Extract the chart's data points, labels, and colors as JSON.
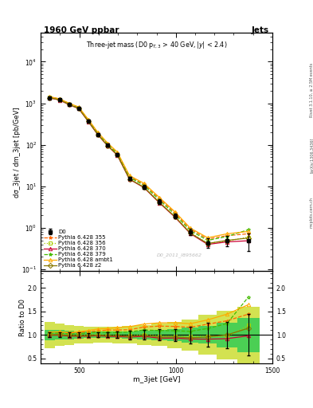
{
  "title_main": "1960 GeV ppbar",
  "title_right": "Jets",
  "plot_title": "Three-jet mass (D0 p$_{T,3}$ > 40 GeV, |y| < 2.4)",
  "ylabel_main": "dσ_3jet / dm_3jet [pb/GeV]",
  "ylabel_ratio": "Ratio to D0",
  "xlabel": "m_3jet [GeV]",
  "watermark": "D0_2011_I895662",
  "right_label1": "Rivet 3.1.10, ≥ 2.5M events",
  "right_label2": "[arXiv:1306.3436]",
  "right_label3": "mcplots.cern.ch",
  "x_data": [
    347,
    397,
    447,
    497,
    547,
    597,
    647,
    697,
    760,
    835,
    915,
    995,
    1075,
    1165,
    1265,
    1375
  ],
  "x_edges": [
    322,
    372,
    422,
    472,
    522,
    572,
    622,
    672,
    722,
    797,
    872,
    957,
    1032,
    1117,
    1212,
    1317,
    1433
  ],
  "d0_y": [
    1350,
    1200,
    950,
    760,
    370,
    175,
    97,
    58,
    15.5,
    9.6,
    4.3,
    1.95,
    0.8,
    0.44,
    0.5,
    0.5
  ],
  "d0_yerr": [
    68,
    58,
    44,
    37,
    17,
    9,
    5,
    4,
    1.5,
    1.0,
    0.5,
    0.25,
    0.14,
    0.11,
    0.14,
    0.22
  ],
  "p355_y": [
    1420,
    1270,
    990,
    800,
    395,
    190,
    107,
    64,
    17.2,
    11.2,
    5.1,
    2.3,
    0.93,
    0.54,
    0.65,
    0.72
  ],
  "p356_y": [
    1370,
    1220,
    945,
    755,
    370,
    177,
    96,
    57,
    15.2,
    9.6,
    4.2,
    1.9,
    0.77,
    0.43,
    0.48,
    0.6
  ],
  "p370_y": [
    1340,
    1195,
    925,
    740,
    360,
    172,
    94,
    56,
    14.8,
    9.3,
    4.0,
    1.82,
    0.73,
    0.4,
    0.46,
    0.49
  ],
  "p379_y": [
    1400,
    1250,
    970,
    780,
    385,
    185,
    102,
    61,
    16.5,
    10.6,
    4.7,
    2.12,
    0.86,
    0.5,
    0.62,
    0.9
  ],
  "pambt1_y": [
    1430,
    1280,
    1000,
    810,
    405,
    197,
    110,
    67,
    18.2,
    11.8,
    5.4,
    2.45,
    0.99,
    0.58,
    0.72,
    0.82
  ],
  "pz2_y": [
    1350,
    1210,
    935,
    748,
    364,
    174,
    95,
    57,
    15.0,
    9.5,
    4.1,
    1.87,
    0.75,
    0.42,
    0.5,
    0.57
  ],
  "ratio_outer_lo": [
    0.72,
    0.76,
    0.79,
    0.81,
    0.82,
    0.83,
    0.83,
    0.82,
    0.81,
    0.79,
    0.76,
    0.72,
    0.67,
    0.58,
    0.48,
    0.4
  ],
  "ratio_outer_hi": [
    1.28,
    1.24,
    1.21,
    1.19,
    1.18,
    1.17,
    1.17,
    1.18,
    1.19,
    1.21,
    1.24,
    1.28,
    1.33,
    1.42,
    1.52,
    1.6
  ],
  "ratio_inner_lo": [
    0.89,
    0.9,
    0.91,
    0.92,
    0.93,
    0.93,
    0.93,
    0.93,
    0.92,
    0.91,
    0.89,
    0.87,
    0.84,
    0.81,
    0.74,
    0.64
  ],
  "ratio_inner_hi": [
    1.11,
    1.1,
    1.09,
    1.08,
    1.07,
    1.07,
    1.07,
    1.07,
    1.08,
    1.09,
    1.11,
    1.13,
    1.16,
    1.19,
    1.26,
    1.36
  ],
  "color_d0": "#000000",
  "color_p355": "#ff6600",
  "color_p356": "#aacc00",
  "color_p370": "#cc0033",
  "color_p379": "#44bb00",
  "color_pambt1": "#ffaa00",
  "color_pz2": "#887700",
  "color_inner": "#33cc55",
  "color_outer": "#ccdd33",
  "xlim": [
    300,
    1500
  ],
  "ylim_main": [
    0.09,
    50000
  ],
  "ylim_ratio": [
    0.4,
    2.35
  ],
  "ratio_yticks": [
    0.5,
    1.0,
    1.5,
    2.0
  ]
}
